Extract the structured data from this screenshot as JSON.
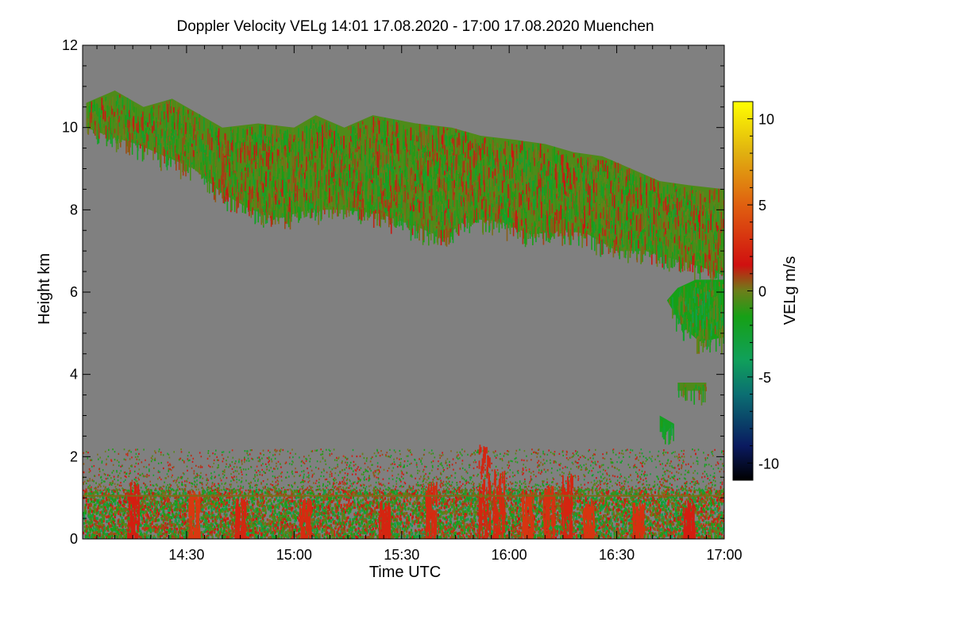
{
  "chart_data": {
    "type": "heatmap",
    "title": "Doppler Velocity VELg   14:01 17.08.2020 - 17:00 17.08.2020 Muenchen",
    "xlabel": "Time UTC",
    "ylabel": "Height km",
    "x_range_minutes": [
      841,
      1020
    ],
    "x_ticks": [
      {
        "minute": 870,
        "label": "14:30"
      },
      {
        "minute": 900,
        "label": "15:00"
      },
      {
        "minute": 930,
        "label": "15:30"
      },
      {
        "minute": 960,
        "label": "16:00"
      },
      {
        "minute": 990,
        "label": "16:30"
      },
      {
        "minute": 1020,
        "label": "17:00"
      }
    ],
    "y_range": [
      0,
      12
    ],
    "y_ticks": [
      {
        "value": 0,
        "label": "0"
      },
      {
        "value": 2,
        "label": "2"
      },
      {
        "value": 4,
        "label": "4"
      },
      {
        "value": 6,
        "label": "6"
      },
      {
        "value": 8,
        "label": "8"
      },
      {
        "value": 10,
        "label": "10"
      },
      {
        "value": 12,
        "label": "12"
      }
    ],
    "colorbar": {
      "label": "VELg m/s",
      "range": [
        -11,
        11
      ],
      "ticks": [
        {
          "value": 10,
          "label": "10"
        },
        {
          "value": 5,
          "label": "5"
        },
        {
          "value": 0,
          "label": "0"
        },
        {
          "value": -5,
          "label": "-5"
        },
        {
          "value": -10,
          "label": "-10"
        }
      ],
      "stops": [
        {
          "value": -11,
          "color": "#000000"
        },
        {
          "value": -9,
          "color": "#0a1a60"
        },
        {
          "value": -6,
          "color": "#0b6f72"
        },
        {
          "value": -4,
          "color": "#10a05a"
        },
        {
          "value": -1.5,
          "color": "#16a016"
        },
        {
          "value": 0,
          "color": "#6c7f1a"
        },
        {
          "value": 1.5,
          "color": "#d01010"
        },
        {
          "value": 5,
          "color": "#e06010"
        },
        {
          "value": 8,
          "color": "#e0b010"
        },
        {
          "value": 11,
          "color": "#ffff00"
        }
      ]
    },
    "background_color": "#808080",
    "cloud_regions": [
      {
        "name": "upper-cirrus-band",
        "mean_velocity": -0.5,
        "time_height_km": [
          [
            842,
            10.6
          ],
          [
            850,
            10.9
          ],
          [
            858,
            10.5
          ],
          [
            866,
            10.7
          ],
          [
            872,
            10.4
          ],
          [
            880,
            10.0
          ],
          [
            890,
            10.1
          ],
          [
            900,
            10.0
          ],
          [
            906,
            10.3
          ],
          [
            914,
            10.0
          ],
          [
            922,
            10.3
          ],
          [
            934,
            10.1
          ],
          [
            944,
            10.0
          ],
          [
            952,
            9.8
          ],
          [
            962,
            9.7
          ],
          [
            970,
            9.6
          ],
          [
            978,
            9.4
          ],
          [
            986,
            9.3
          ],
          [
            994,
            9.0
          ],
          [
            1002,
            8.7
          ],
          [
            1010,
            8.6
          ],
          [
            1020,
            8.5
          ],
          [
            1020,
            6.4
          ],
          [
            1014,
            6.6
          ],
          [
            1006,
            6.8
          ],
          [
            998,
            7.0
          ],
          [
            990,
            7.0
          ],
          [
            982,
            7.4
          ],
          [
            976,
            7.5
          ],
          [
            966,
            7.4
          ],
          [
            958,
            7.7
          ],
          [
            948,
            7.8
          ],
          [
            942,
            7.3
          ],
          [
            934,
            7.6
          ],
          [
            924,
            7.9
          ],
          [
            914,
            8.0
          ],
          [
            904,
            8.0
          ],
          [
            896,
            7.8
          ],
          [
            888,
            8.0
          ],
          [
            880,
            8.4
          ],
          [
            872,
            9.0
          ],
          [
            864,
            9.3
          ],
          [
            856,
            9.6
          ],
          [
            848,
            9.8
          ],
          [
            842,
            10.0
          ]
        ]
      },
      {
        "name": "mid-cloud-right",
        "mean_velocity": -1.5,
        "time_height_km": [
          [
            1007,
            6.1
          ],
          [
            1012,
            6.3
          ],
          [
            1020,
            6.3
          ],
          [
            1020,
            4.9
          ],
          [
            1013,
            4.8
          ],
          [
            1008,
            5.2
          ],
          [
            1004,
            5.8
          ]
        ]
      },
      {
        "name": "small-cloud-3.7km",
        "mean_velocity": -0.5,
        "time_height_km": [
          [
            1007,
            3.8
          ],
          [
            1015,
            3.8
          ],
          [
            1015,
            3.6
          ],
          [
            1007,
            3.6
          ]
        ]
      },
      {
        "name": "small-echo-2.8km",
        "mean_velocity": -2,
        "time_height_km": [
          [
            1002,
            3.0
          ],
          [
            1006,
            2.8
          ],
          [
            1004,
            2.6
          ],
          [
            1002,
            2.6
          ]
        ]
      }
    ],
    "boundary_layer": {
      "top_km": 2.2,
      "dense_top_km": 1.2,
      "mixed_velocity_range": [
        -4,
        3
      ],
      "level_line_km": 1.05
    },
    "updraft_plumes_red": [
      {
        "minute": 855,
        "top_km": 1.4
      },
      {
        "minute": 872,
        "top_km": 1.2
      },
      {
        "minute": 885,
        "top_km": 1.0
      },
      {
        "minute": 903,
        "top_km": 1.0
      },
      {
        "minute": 925,
        "top_km": 0.9
      },
      {
        "minute": 938,
        "top_km": 1.4
      },
      {
        "minute": 953,
        "top_km": 2.3
      },
      {
        "minute": 957,
        "top_km": 1.7
      },
      {
        "minute": 965,
        "top_km": 1.2
      },
      {
        "minute": 971,
        "top_km": 1.3
      },
      {
        "minute": 976,
        "top_km": 1.6
      },
      {
        "minute": 982,
        "top_km": 1.0
      },
      {
        "minute": 996,
        "top_km": 0.9
      },
      {
        "minute": 1010,
        "top_km": 0.9
      }
    ]
  }
}
